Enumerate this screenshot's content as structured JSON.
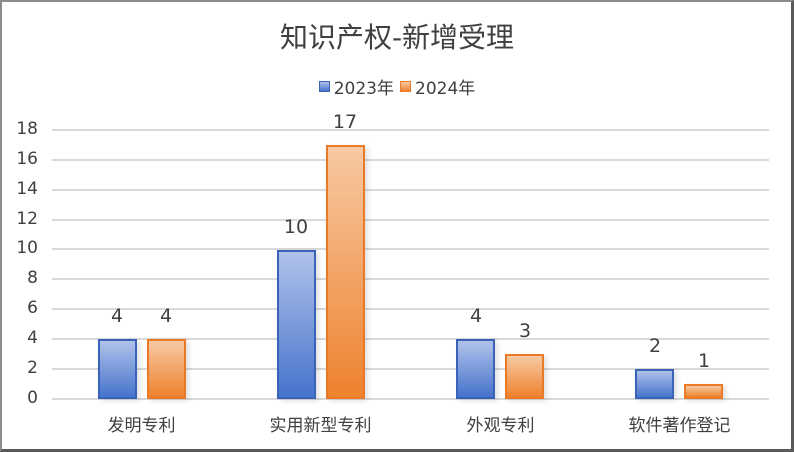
{
  "chart_data": {
    "type": "bar",
    "title": "知识产权-新增受理",
    "categories": [
      "发明专利",
      "实用新型专利",
      "外观专利",
      "软件著作登记"
    ],
    "series": [
      {
        "name": "2023年",
        "values": [
          4,
          10,
          4,
          2
        ],
        "color": "#4472c4"
      },
      {
        "name": "2024年",
        "values": [
          4,
          17,
          3,
          1
        ],
        "color": "#ed7d31"
      }
    ],
    "xlabel": "",
    "ylabel": "",
    "ylim": [
      0,
      18
    ],
    "yticks": [
      0,
      2,
      4,
      6,
      8,
      10,
      12,
      14,
      16,
      18
    ],
    "grid": true,
    "legend_position": "top",
    "data_labels": true
  },
  "title": "知识产权-新增受理",
  "legend": [
    {
      "label": "2023年",
      "color": "#4472c4"
    },
    {
      "label": "2024年",
      "color": "#ed7d31"
    }
  ],
  "yticks": [
    "0",
    "2",
    "4",
    "6",
    "8",
    "10",
    "12",
    "14",
    "16",
    "18"
  ],
  "categories": [
    "发明专利",
    "实用新型专利",
    "外观专利",
    "软件著作登记"
  ],
  "labels": {
    "s0": [
      "4",
      "10",
      "4",
      "2"
    ],
    "s1": [
      "4",
      "17",
      "3",
      "1"
    ]
  }
}
